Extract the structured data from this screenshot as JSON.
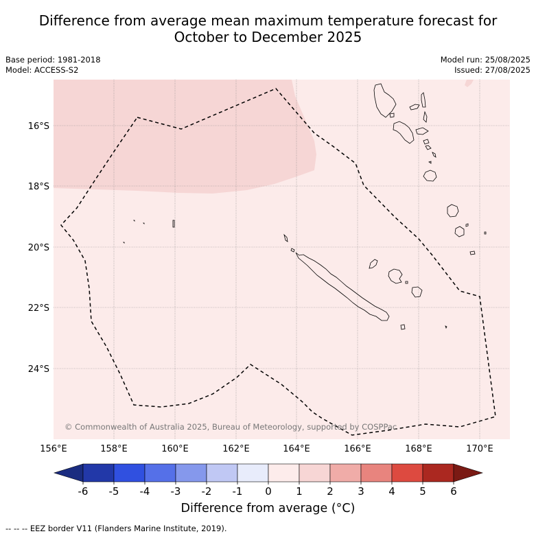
{
  "title_line1": "Difference from average mean maximum temperature forecast for",
  "title_line2": "October to December 2025",
  "base_period": "Base period: 1981-2018",
  "model": "Model: ACCESS-S2",
  "model_run": "Model run: 25/08/2025",
  "issued": "Issued: 27/08/2025",
  "lat_labels": [
    "16°S",
    "18°S",
    "20°S",
    "22°S",
    "24°S"
  ],
  "lon_labels": [
    "156°E",
    "158°E",
    "160°E",
    "162°E",
    "164°E",
    "166°E",
    "168°E",
    "170°E"
  ],
  "copyright": "© Commonwealth of Australia 2025, Bureau of Meteorology, supported by COSPPac",
  "colorbar": {
    "ticks": [
      "-6",
      "-5",
      "-4",
      "-3",
      "-2",
      "-1",
      "0",
      "1",
      "2",
      "3",
      "4",
      "5",
      "6"
    ],
    "colors": [
      "#2238a8",
      "#3050e0",
      "#5570e8",
      "#8598ec",
      "#c0c8f4",
      "#e8ecfb",
      "#fdeceb",
      "#f7d6d5",
      "#f0aca8",
      "#e8847e",
      "#dd4a40",
      "#ab2820"
    ],
    "under_color": "#1a2c80",
    "over_color": "#7a1a14",
    "label": "Difference from average (°C)"
  },
  "eez_note": "-- -- -- EEZ border V11 (Flanders Marine Institute, 2019).",
  "map": {
    "lon_range": [
      156,
      171
    ],
    "lat_range": [
      -26.5,
      -14.5
    ],
    "background_category": "0 to 1",
    "shaded_region_category": "1 to 2",
    "coastlines": [
      "New Caledonia",
      "Loyalty Islands",
      "Vanuatu",
      "Chesterfield Islands"
    ]
  }
}
